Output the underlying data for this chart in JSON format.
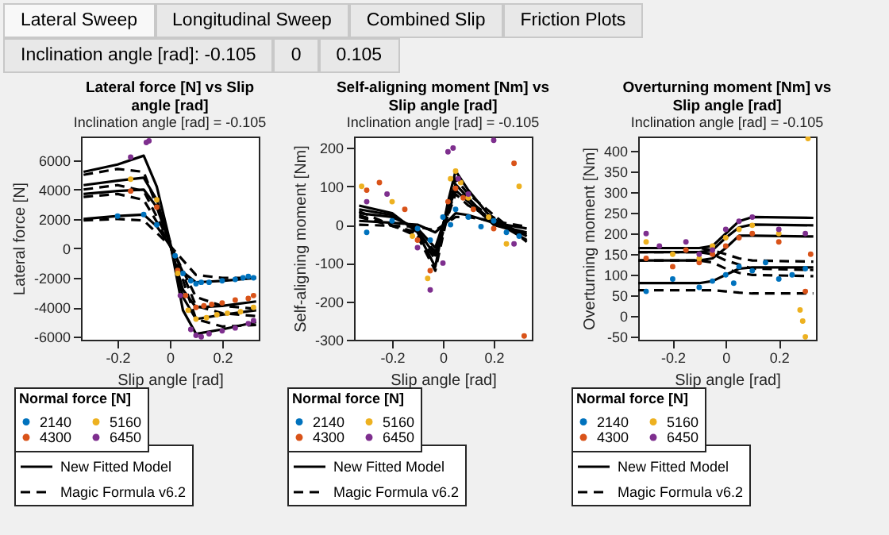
{
  "chart_data": [
    {
      "type": "scatter",
      "title": "Lateral force [N] vs Slip angle [rad]",
      "subtitle": "Inclination angle [rad] = -0.105",
      "xlabel": "Slip angle [rad]",
      "ylabel": "Lateral force [N]",
      "legend_title": "Normal force [N]",
      "legend": "bottom",
      "annotations": [
        "Lateral Sweep",
        "Longitudinal Sweep",
        "Combined Slip",
        "Friction Plots",
        "Inclination angle [rad]: -0.105",
        "0",
        "0.105"
      ],
      "xlim": [
        -0.34,
        0.34
      ],
      "xticks": [
        -0.2,
        0,
        0.2
      ],
      "ylim": [
        -6200,
        7600
      ],
      "yticks": [
        -6000,
        -4000,
        -2000,
        0,
        2000,
        4000,
        6000
      ],
      "series": [
        {
          "name": "2140",
          "type": "scatter",
          "color": "#0072bd",
          "x": [
            0.02,
            0.05,
            0.08,
            0.1,
            0.12,
            0.15,
            0.2,
            0.25,
            0.28,
            0.3,
            0.32,
            -0.05,
            -0.1,
            -0.2
          ],
          "values": [
            -500,
            -1700,
            -2200,
            -2400,
            -2300,
            -2300,
            -2200,
            -2100,
            -2000,
            -1900,
            -2000,
            1600,
            2300,
            2200
          ]
        },
        {
          "name": "4300",
          "type": "scatter",
          "color": "#d95319",
          "x": [
            0.03,
            0.06,
            0.1,
            0.13,
            0.16,
            0.2,
            0.25,
            0.3,
            0.32,
            -0.05,
            -0.15
          ],
          "values": [
            -1500,
            -3200,
            -4000,
            -3900,
            -3800,
            -3700,
            -3500,
            -3400,
            -3200,
            2800,
            3900
          ]
        },
        {
          "name": "5160",
          "type": "scatter",
          "color": "#edb120",
          "x": [
            0.03,
            0.07,
            0.1,
            0.14,
            0.18,
            0.22,
            0.27,
            0.32,
            -0.05,
            -0.15
          ],
          "values": [
            -1700,
            -4200,
            -4800,
            -4700,
            -4500,
            -4400,
            -4300,
            -4000,
            3300,
            4700
          ]
        },
        {
          "name": "6450",
          "type": "scatter",
          "color": "#7e2f8e",
          "x": [
            0.04,
            0.08,
            0.1,
            0.12,
            0.15,
            0.2,
            0.25,
            0.3,
            0.32,
            -0.08,
            -0.09,
            -0.15
          ],
          "values": [
            -3200,
            -5500,
            -5900,
            -6000,
            -5800,
            -5600,
            -5400,
            -5100,
            -4900,
            7300,
            7200,
            6200
          ]
        },
        {
          "name": "New Fitted Model",
          "type": "line",
          "line_style": "solid",
          "color": "#000000",
          "x": [
            -0.33,
            -0.2,
            -0.1,
            -0.05,
            0,
            0.05,
            0.1,
            0.2,
            0.33
          ],
          "values": [
            2000,
            2200,
            2300,
            1500,
            200,
            -1600,
            -2300,
            -2200,
            -2000
          ]
        },
        {
          "type": "line",
          "line_style": "solid",
          "color": "#000000",
          "x": [
            -0.33,
            -0.2,
            -0.1,
            -0.05,
            0,
            0.05,
            0.1,
            0.2,
            0.33
          ],
          "values": [
            3700,
            3900,
            4000,
            2800,
            300,
            -2800,
            -4000,
            -3900,
            -3600
          ]
        },
        {
          "type": "line",
          "line_style": "solid",
          "color": "#000000",
          "x": [
            -0.33,
            -0.2,
            -0.1,
            -0.05,
            0,
            0.05,
            0.1,
            0.2,
            0.33
          ],
          "values": [
            4300,
            4600,
            4800,
            3300,
            400,
            -3300,
            -4800,
            -4500,
            -4200
          ]
        },
        {
          "type": "line",
          "line_style": "solid",
          "color": "#000000",
          "x": [
            -0.33,
            -0.2,
            -0.1,
            -0.05,
            0,
            0.05,
            0.1,
            0.2,
            0.33
          ],
          "values": [
            5200,
            5700,
            6300,
            4200,
            500,
            -4200,
            -5800,
            -5500,
            -5000
          ]
        },
        {
          "name": "Magic Formula v6.2",
          "type": "line",
          "line_style": "dashed",
          "color": "#000000",
          "x": [
            -0.33,
            -0.2,
            -0.1,
            0,
            0.1,
            0.2,
            0.33
          ],
          "values": [
            1900,
            2000,
            1900,
            200,
            -1800,
            -2000,
            -2000
          ]
        },
        {
          "type": "line",
          "line_style": "dashed",
          "color": "#000000",
          "x": [
            -0.33,
            -0.2,
            -0.1,
            0,
            0.1,
            0.2,
            0.33
          ],
          "values": [
            3500,
            3700,
            3300,
            300,
            -3300,
            -3900,
            -4100
          ]
        },
        {
          "type": "line",
          "line_style": "dashed",
          "color": "#000000",
          "x": [
            -0.33,
            -0.2,
            -0.1,
            0,
            0.1,
            0.2,
            0.33
          ],
          "values": [
            4000,
            4300,
            3900,
            400,
            -3900,
            -4400,
            -4600
          ]
        },
        {
          "type": "line",
          "line_style": "dashed",
          "color": "#000000",
          "x": [
            -0.33,
            -0.2,
            -0.1,
            0,
            0.1,
            0.2,
            0.33
          ],
          "values": [
            5000,
            5400,
            5200,
            500,
            -4800,
            -5300,
            -5200
          ]
        }
      ]
    },
    {
      "type": "scatter",
      "title": "Self-aligning moment [Nm] vs Slip angle [rad]",
      "subtitle": "Inclination angle [rad] = -0.105",
      "xlabel": "Slip angle [rad]",
      "ylabel": "Self-aligning moment [Nm]",
      "legend_title": "Normal force [N]",
      "legend": "bottom",
      "xlim": [
        -0.35,
        0.35
      ],
      "xticks": [
        -0.2,
        0,
        0.2
      ],
      "ylim": [
        -300,
        230
      ],
      "yticks": [
        -300,
        -200,
        -100,
        0,
        100,
        200
      ],
      "series": [
        {
          "name": "2140",
          "type": "scatter",
          "color": "#0072bd",
          "x": [
            -0.3,
            -0.2,
            -0.1,
            -0.05,
            0,
            0.03,
            0.05,
            0.1,
            0.15,
            0.2,
            0.25,
            0.3
          ],
          "values": [
            -20,
            10,
            -10,
            -40,
            20,
            0,
            40,
            20,
            -5,
            10,
            -20,
            -30
          ]
        },
        {
          "name": "4300",
          "type": "scatter",
          "color": "#d95319",
          "x": [
            -0.3,
            -0.25,
            -0.15,
            -0.1,
            -0.05,
            0.02,
            0.05,
            0.08,
            0.12,
            0.2,
            0.28,
            0.32
          ],
          "values": [
            90,
            110,
            40,
            -40,
            -120,
            60,
            95,
            70,
            40,
            -10,
            160,
            -290
          ]
        },
        {
          "name": "5160",
          "type": "scatter",
          "color": "#edb120",
          "x": [
            -0.32,
            -0.2,
            -0.12,
            -0.06,
            0.03,
            0.05,
            0.07,
            0.1,
            0.18,
            0.25,
            0.3
          ],
          "values": [
            100,
            60,
            -30,
            -140,
            120,
            140,
            110,
            70,
            20,
            -50,
            100
          ]
        },
        {
          "name": "6450",
          "type": "scatter",
          "color": "#7e2f8e",
          "x": [
            -0.3,
            -0.22,
            -0.1,
            -0.05,
            0,
            0.02,
            0.04,
            0.06,
            0.1,
            0.2,
            0.28
          ],
          "values": [
            60,
            80,
            -60,
            -170,
            -100,
            190,
            200,
            120,
            80,
            220,
            -50
          ]
        },
        {
          "name": "New Fitted Model",
          "type": "line",
          "line_style": "solid",
          "color": "#000000",
          "x": [
            -0.33,
            -0.2,
            -0.1,
            -0.03,
            0.02,
            0.05,
            0.1,
            0.2,
            0.33
          ],
          "values": [
            10,
            5,
            0,
            -20,
            10,
            30,
            25,
            5,
            -10
          ]
        },
        {
          "type": "line",
          "line_style": "solid",
          "color": "#000000",
          "x": [
            -0.33,
            -0.2,
            -0.1,
            -0.03,
            0.02,
            0.05,
            0.1,
            0.2,
            0.33
          ],
          "values": [
            30,
            20,
            -10,
            -60,
            40,
            90,
            60,
            0,
            -20
          ]
        },
        {
          "type": "line",
          "line_style": "solid",
          "color": "#000000",
          "x": [
            -0.33,
            -0.2,
            -0.1,
            -0.03,
            0.02,
            0.05,
            0.1,
            0.2,
            0.33
          ],
          "values": [
            40,
            25,
            -15,
            -80,
            50,
            105,
            70,
            0,
            -25
          ]
        },
        {
          "type": "line",
          "line_style": "solid",
          "color": "#000000",
          "x": [
            -0.33,
            -0.2,
            -0.1,
            -0.03,
            0.02,
            0.05,
            0.1,
            0.2,
            0.33
          ],
          "values": [
            50,
            30,
            -20,
            -110,
            60,
            140,
            90,
            10,
            -40
          ]
        },
        {
          "name": "Magic Formula v6.2",
          "type": "line",
          "line_style": "dashed",
          "color": "#000000",
          "x": [
            -0.33,
            -0.1,
            -0.03,
            0.05,
            0.1,
            0.33
          ],
          "values": [
            0,
            -5,
            -15,
            20,
            20,
            -5
          ]
        },
        {
          "type": "line",
          "line_style": "dashed",
          "color": "#000000",
          "x": [
            -0.33,
            -0.1,
            -0.03,
            0.05,
            0.1,
            0.33
          ],
          "values": [
            20,
            -20,
            -70,
            80,
            50,
            -30
          ]
        },
        {
          "type": "line",
          "line_style": "dashed",
          "color": "#000000",
          "x": [
            -0.33,
            -0.1,
            -0.03,
            0.05,
            0.1,
            0.33
          ],
          "values": [
            25,
            -25,
            -90,
            95,
            60,
            -35
          ]
        },
        {
          "type": "line",
          "line_style": "dashed",
          "color": "#000000",
          "x": [
            -0.33,
            -0.1,
            -0.03,
            0.05,
            0.1,
            0.33
          ],
          "values": [
            35,
            -30,
            -120,
            120,
            80,
            -45
          ]
        }
      ]
    },
    {
      "type": "scatter",
      "title": "Overturning moment [Nm] vs Slip angle [rad]",
      "subtitle": "Inclination angle [rad] = -0.105",
      "xlabel": "Slip angle [rad]",
      "ylabel": "Overturning moment [Nm]",
      "legend_title": "Normal force [N]",
      "legend": "bottom",
      "xlim": [
        -0.33,
        0.34
      ],
      "xticks": [
        -0.2,
        0,
        0.2
      ],
      "ylim": [
        -57,
        435
      ],
      "yticks": [
        -50,
        0,
        50,
        100,
        150,
        200,
        250,
        300,
        350,
        400
      ],
      "series": [
        {
          "name": "2140",
          "type": "scatter",
          "color": "#0072bd",
          "x": [
            -0.3,
            -0.2,
            -0.1,
            -0.05,
            0,
            0.03,
            0.05,
            0.1,
            0.15,
            0.2,
            0.25,
            0.3
          ],
          "values": [
            60,
            90,
            70,
            85,
            100,
            80,
            120,
            110,
            130,
            90,
            100,
            115
          ]
        },
        {
          "name": "4300",
          "type": "scatter",
          "color": "#d95319",
          "x": [
            -0.3,
            -0.2,
            -0.15,
            -0.1,
            -0.05,
            0,
            0.05,
            0.1,
            0.2,
            0.3,
            0.32
          ],
          "values": [
            140,
            120,
            160,
            130,
            150,
            170,
            190,
            200,
            180,
            60,
            150
          ]
        },
        {
          "name": "5160",
          "type": "scatter",
          "color": "#edb120",
          "x": [
            -0.3,
            -0.2,
            -0.1,
            -0.05,
            0,
            0.05,
            0.1,
            0.2,
            0.28,
            0.29,
            0.3,
            0.31
          ],
          "values": [
            180,
            150,
            140,
            170,
            190,
            210,
            220,
            200,
            15,
            -12,
            -50,
            430
          ]
        },
        {
          "name": "6450",
          "type": "scatter",
          "color": "#7e2f8e",
          "x": [
            -0.3,
            -0.25,
            -0.15,
            -0.1,
            -0.05,
            0,
            0.05,
            0.1,
            0.2,
            0.3
          ],
          "values": [
            200,
            170,
            180,
            150,
            160,
            210,
            230,
            240,
            210,
            200
          ]
        },
        {
          "name": "New Fitted Model",
          "type": "line",
          "line_style": "solid",
          "color": "#000000",
          "x": [
            -0.33,
            -0.1,
            -0.05,
            0,
            0.05,
            0.1,
            0.33
          ],
          "values": [
            80,
            80,
            85,
            100,
            115,
            118,
            118
          ]
        },
        {
          "type": "line",
          "line_style": "solid",
          "color": "#000000",
          "x": [
            -0.33,
            -0.1,
            -0.05,
            0,
            0.05,
            0.1,
            0.33
          ],
          "values": [
            135,
            135,
            140,
            165,
            195,
            195,
            193
          ]
        },
        {
          "type": "line",
          "line_style": "solid",
          "color": "#000000",
          "x": [
            -0.33,
            -0.1,
            -0.05,
            0,
            0.05,
            0.1,
            0.33
          ],
          "values": [
            155,
            155,
            160,
            190,
            215,
            222,
            220
          ]
        },
        {
          "type": "line",
          "line_style": "solid",
          "color": "#000000",
          "x": [
            -0.33,
            -0.1,
            -0.05,
            0,
            0.05,
            0.1,
            0.33
          ],
          "values": [
            165,
            165,
            170,
            200,
            230,
            240,
            238
          ]
        },
        {
          "name": "Magic Formula v6.2",
          "type": "line",
          "line_style": "dashed",
          "color": "#000000",
          "x": [
            -0.33,
            -0.1,
            -0.05,
            0,
            0.05,
            0.1,
            0.33
          ],
          "values": [
            63,
            63,
            63,
            60,
            57,
            55,
            55
          ]
        },
        {
          "type": "line",
          "line_style": "dashed",
          "color": "#000000",
          "x": [
            -0.33,
            -0.1,
            -0.05,
            0,
            0.05,
            0.1,
            0.33
          ],
          "values": [
            135,
            135,
            130,
            115,
            105,
            100,
            97
          ]
        },
        {
          "type": "line",
          "line_style": "dashed",
          "color": "#000000",
          "x": [
            -0.33,
            -0.1,
            -0.05,
            0,
            0.05,
            0.1,
            0.33
          ],
          "values": [
            155,
            155,
            150,
            135,
            125,
            115,
            112
          ]
        },
        {
          "type": "line",
          "line_style": "dashed",
          "color": "#000000",
          "x": [
            -0.33,
            -0.1,
            -0.05,
            0,
            0.05,
            0.1,
            0.33
          ],
          "values": [
            165,
            165,
            160,
            150,
            140,
            135,
            132
          ]
        }
      ]
    }
  ]
}
